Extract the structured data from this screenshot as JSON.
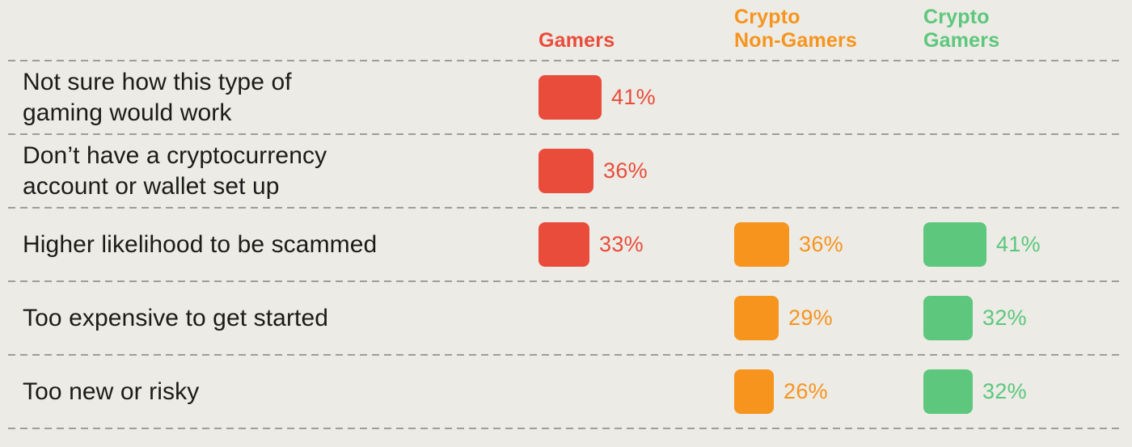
{
  "colors": {
    "background": "#ECEBE5",
    "divider": "#9E9E99",
    "row_label_text": "#1B1B19",
    "gamers": "#EA4C3B",
    "crypto_nongamers": "#F7941E",
    "crypto_gamers": "#5CC77D"
  },
  "header": {
    "columns": [
      {
        "label": "Gamers",
        "color": "#EA4C3B"
      },
      {
        "label": "Crypto\nNon-Gamers",
        "color": "#F7941E"
      },
      {
        "label": "Crypto\nGamers",
        "color": "#5CC77D"
      }
    ]
  },
  "rows": [
    {
      "label": "Not sure how this type of\ngaming would work",
      "cells": {
        "gamers": {
          "value": 41,
          "label": "41%"
        }
      }
    },
    {
      "label": "Don’t have a cryptocurrency\naccount or wallet set up",
      "cells": {
        "gamers": {
          "value": 36,
          "label": "36%"
        }
      }
    },
    {
      "label": "Higher likelihood to be scammed",
      "cells": {
        "gamers": {
          "value": 33,
          "label": "33%"
        },
        "crypto_nongamers": {
          "value": 36,
          "label": "36%"
        },
        "crypto_gamers": {
          "value": 41,
          "label": "41%"
        }
      }
    },
    {
      "label": "Too expensive to get started",
      "cells": {
        "crypto_nongamers": {
          "value": 29,
          "label": "29%"
        },
        "crypto_gamers": {
          "value": 32,
          "label": "32%"
        }
      }
    },
    {
      "label": "Too new or risky",
      "cells": {
        "crypto_nongamers": {
          "value": 26,
          "label": "26%"
        },
        "crypto_gamers": {
          "value": 32,
          "label": "32%"
        }
      }
    }
  ],
  "chart_data": {
    "type": "bar",
    "title": "",
    "xlabel": "",
    "ylabel": "",
    "value_format": "percent",
    "legend_position": "top",
    "grid": "dashed horizontal row dividers",
    "categories": [
      "Not sure how this type of gaming would work",
      "Don’t have a cryptocurrency account or wallet set up",
      "Higher likelihood to be scammed",
      "Too expensive to get started",
      "Too new or risky"
    ],
    "series": [
      {
        "name": "Gamers",
        "color": "#EA4C3B",
        "values": [
          41,
          36,
          33,
          null,
          null
        ]
      },
      {
        "name": "Crypto Non-Gamers",
        "color": "#F7941E",
        "values": [
          null,
          null,
          36,
          29,
          26
        ]
      },
      {
        "name": "Crypto Gamers",
        "color": "#5CC77D",
        "values": [
          null,
          null,
          41,
          32,
          32
        ]
      }
    ]
  }
}
